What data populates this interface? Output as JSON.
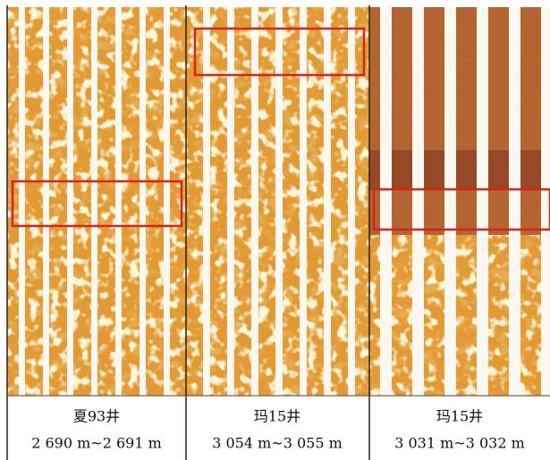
{
  "panels": [
    {
      "well": "夏93井",
      "depth": "2 690 m~2 691 m"
    },
    {
      "well": "玛15井",
      "depth": "3 054 m~3 055 m"
    },
    {
      "well": "玛15井",
      "depth": "3 031 m~3 032 m"
    }
  ]
}
